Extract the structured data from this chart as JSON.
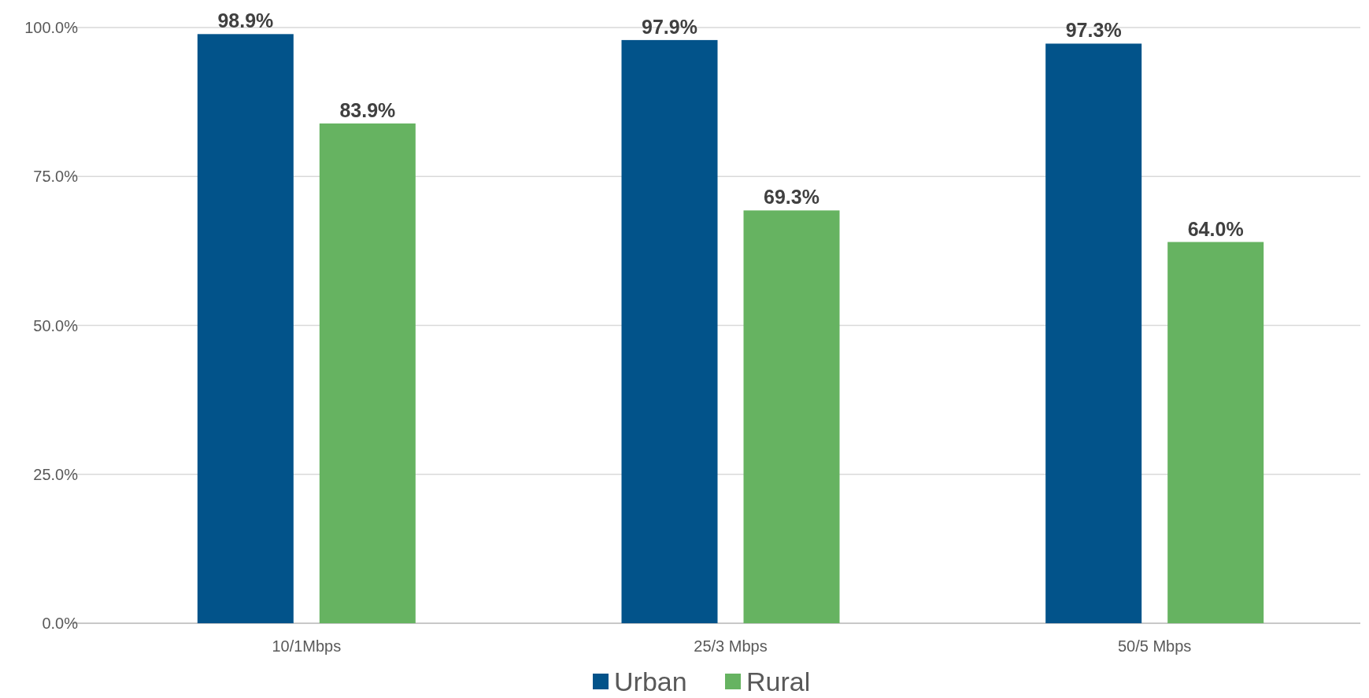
{
  "chart_data": {
    "type": "bar",
    "categories": [
      "10/1Mbps",
      "25/3 Mbps",
      "50/5 Mbps"
    ],
    "series": [
      {
        "name": "Urban",
        "color": "#02538a",
        "values": [
          98.9,
          97.9,
          97.3
        ]
      },
      {
        "name": "Rural",
        "color": "#66b361",
        "values": [
          83.9,
          69.3,
          64.0
        ]
      }
    ],
    "value_labels": [
      [
        "98.9%",
        "97.9%",
        "97.3%"
      ],
      [
        "83.9%",
        "69.3%",
        "64.0%"
      ]
    ],
    "ylim": [
      0,
      100
    ],
    "yticks": [
      {
        "value": 0,
        "label": "0.0%"
      },
      {
        "value": 25,
        "label": "25.0%"
      },
      {
        "value": 50,
        "label": "50.0%"
      },
      {
        "value": 75,
        "label": "75.0%"
      },
      {
        "value": 100,
        "label": "100.0%"
      }
    ],
    "grid": "y",
    "legend": "bottom"
  }
}
